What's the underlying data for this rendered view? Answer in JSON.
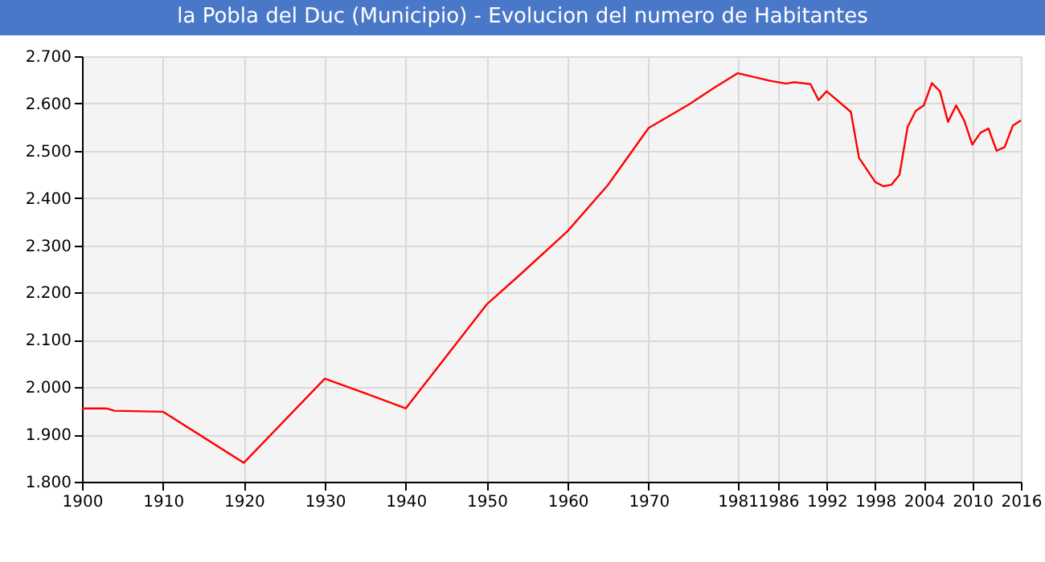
{
  "chart_data": {
    "type": "line",
    "title": "la Pobla del Duc (Municipio) - Evolucion del numero de Habitantes",
    "x": [
      1900,
      1903,
      1904,
      1910,
      1920,
      1930,
      1935,
      1940,
      1950,
      1954,
      1960,
      1965,
      1970,
      1975,
      1978,
      1981,
      1983,
      1985,
      1987,
      1988,
      1990,
      1991,
      1992,
      1995,
      1996,
      1998,
      1999,
      2000,
      2001,
      2002,
      2003,
      2004,
      2005,
      2006,
      2007,
      2008,
      2009,
      2010,
      2011,
      2012,
      2013,
      2014,
      2015,
      2016
    ],
    "series": [
      {
        "color": "#ff0000",
        "values": [
          1955,
          1955,
          1950,
          1948,
          1840,
          2018,
          1987,
          1955,
          2175,
          2236,
          2330,
          2428,
          2548,
          2598,
          2632,
          2664,
          2656,
          2648,
          2642,
          2645,
          2641,
          2607,
          2626,
          2582,
          2485,
          2434,
          2425,
          2428,
          2449,
          2550,
          2584,
          2596,
          2643,
          2626,
          2561,
          2596,
          2564,
          2513,
          2538,
          2547,
          2500,
          2508,
          2553,
          2564
        ]
      }
    ],
    "xlim": [
      1900,
      2016
    ],
    "xticks": [
      1900,
      1910,
      1920,
      1930,
      1940,
      1950,
      1960,
      1970,
      1981,
      1986,
      1992,
      1998,
      2004,
      2010,
      2016
    ],
    "ylim": [
      1800,
      2700
    ],
    "yticks": [
      {
        "value": 1800,
        "label": "1.800"
      },
      {
        "value": 1900,
        "label": "1.900"
      },
      {
        "value": 2000,
        "label": "2.000"
      },
      {
        "value": 2100,
        "label": "2.100"
      },
      {
        "value": 2200,
        "label": "2.200"
      },
      {
        "value": 2300,
        "label": "2.300"
      },
      {
        "value": 2400,
        "label": "2.400"
      },
      {
        "value": 2500,
        "label": "2.500"
      },
      {
        "value": 2600,
        "label": "2.600"
      },
      {
        "value": 2700,
        "label": "2.700"
      }
    ],
    "grid": true,
    "marker": "none",
    "line_style": "solid"
  }
}
